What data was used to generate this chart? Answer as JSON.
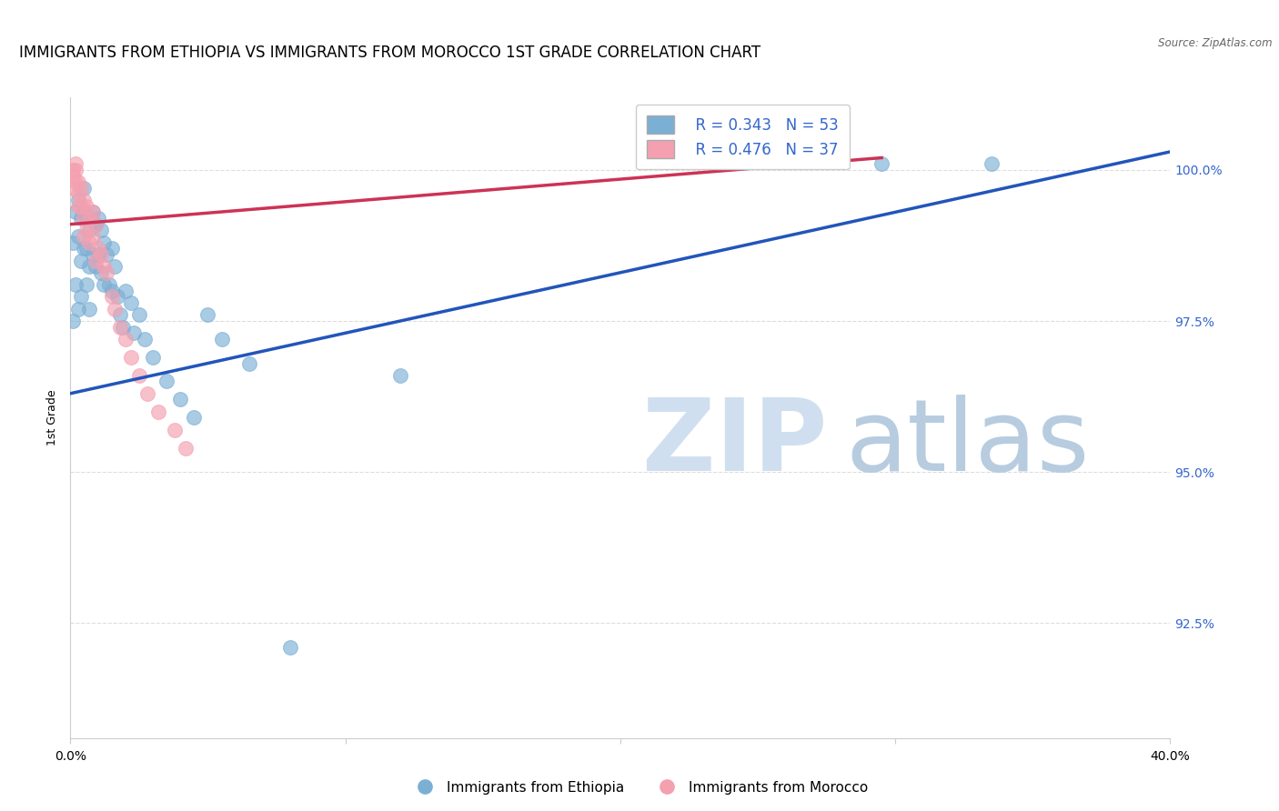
{
  "title": "IMMIGRANTS FROM ETHIOPIA VS IMMIGRANTS FROM MOROCCO 1ST GRADE CORRELATION CHART",
  "source": "Source: ZipAtlas.com",
  "ylabel": "1st Grade",
  "ytick_labels": [
    "100.0%",
    "97.5%",
    "95.0%",
    "92.5%"
  ],
  "ytick_values": [
    1.0,
    0.975,
    0.95,
    0.925
  ],
  "xmin": 0.0,
  "xmax": 0.4,
  "ymin": 0.906,
  "ymax": 1.012,
  "legend_blue_R": "R = 0.343",
  "legend_blue_N": "N = 53",
  "legend_pink_R": "R = 0.476",
  "legend_pink_N": "N = 37",
  "legend_label_blue": "Immigrants from Ethiopia",
  "legend_label_pink": "Immigrants from Morocco",
  "blue_color": "#7BAFD4",
  "pink_color": "#F4A0B0",
  "trendline_blue_color": "#2255BB",
  "trendline_pink_color": "#CC3355",
  "blue_scatter_x": [
    0.001,
    0.001,
    0.002,
    0.002,
    0.003,
    0.003,
    0.003,
    0.004,
    0.004,
    0.004,
    0.005,
    0.005,
    0.005,
    0.006,
    0.006,
    0.006,
    0.007,
    0.007,
    0.007,
    0.008,
    0.008,
    0.009,
    0.009,
    0.01,
    0.01,
    0.011,
    0.011,
    0.012,
    0.012,
    0.013,
    0.014,
    0.015,
    0.015,
    0.016,
    0.017,
    0.018,
    0.019,
    0.02,
    0.022,
    0.023,
    0.025,
    0.027,
    0.03,
    0.035,
    0.04,
    0.045,
    0.05,
    0.055,
    0.065,
    0.08,
    0.12,
    0.295,
    0.335
  ],
  "blue_scatter_y": [
    0.988,
    0.975,
    0.993,
    0.981,
    0.995,
    0.989,
    0.977,
    0.992,
    0.985,
    0.979,
    0.997,
    0.993,
    0.987,
    0.992,
    0.987,
    0.981,
    0.99,
    0.984,
    0.977,
    0.993,
    0.986,
    0.991,
    0.984,
    0.992,
    0.986,
    0.99,
    0.983,
    0.988,
    0.981,
    0.986,
    0.981,
    0.987,
    0.98,
    0.984,
    0.979,
    0.976,
    0.974,
    0.98,
    0.978,
    0.973,
    0.976,
    0.972,
    0.969,
    0.965,
    0.962,
    0.959,
    0.976,
    0.972,
    0.968,
    0.921,
    0.966,
    1.001,
    1.001
  ],
  "pink_scatter_x": [
    0.001,
    0.001,
    0.001,
    0.002,
    0.002,
    0.002,
    0.003,
    0.003,
    0.003,
    0.004,
    0.004,
    0.005,
    0.005,
    0.005,
    0.006,
    0.006,
    0.007,
    0.007,
    0.008,
    0.008,
    0.009,
    0.009,
    0.01,
    0.011,
    0.012,
    0.013,
    0.015,
    0.016,
    0.018,
    0.02,
    0.022,
    0.025,
    0.028,
    0.032,
    0.038,
    0.042,
    0.28
  ],
  "pink_scatter_y": [
    1.0,
    0.999,
    0.997,
    1.001,
    1.0,
    0.998,
    0.998,
    0.996,
    0.994,
    0.997,
    0.994,
    0.995,
    0.992,
    0.989,
    0.994,
    0.99,
    0.992,
    0.988,
    0.993,
    0.989,
    0.991,
    0.985,
    0.987,
    0.986,
    0.984,
    0.983,
    0.979,
    0.977,
    0.974,
    0.972,
    0.969,
    0.966,
    0.963,
    0.96,
    0.957,
    0.954,
    1.002
  ],
  "blue_trend_x0": 0.0,
  "blue_trend_x1": 0.4,
  "blue_trend_y0": 0.963,
  "blue_trend_y1": 1.003,
  "pink_trend_x0": 0.0,
  "pink_trend_x1": 0.295,
  "pink_trend_y0": 0.991,
  "pink_trend_y1": 1.002,
  "grid_color": "#DDDDDD",
  "title_fontsize": 12,
  "axis_label_fontsize": 9,
  "tick_fontsize": 10,
  "legend_fontsize": 12,
  "watermark_color_zip": "#D0DFF0",
  "watermark_color_atlas": "#B8CCE0",
  "right_tick_color": "#3366CC"
}
